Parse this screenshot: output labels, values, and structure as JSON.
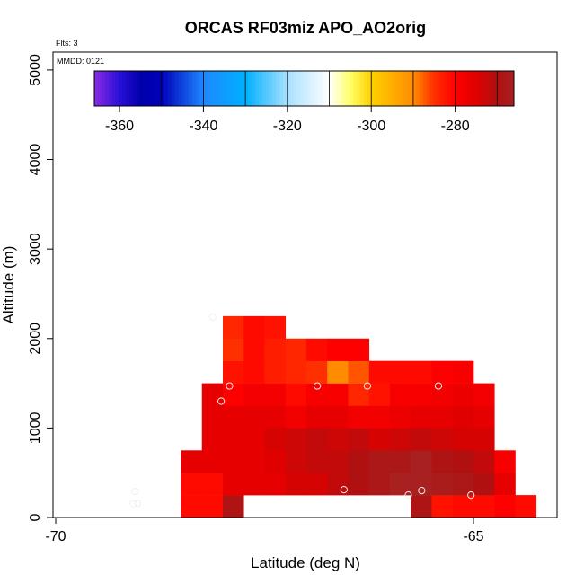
{
  "chart_data": {
    "type": "heatmap",
    "title": "ORCAS RF03miz APO_AO2orig",
    "annotations": {
      "flights": "Flts: 3",
      "date": "MMDD: 0121"
    },
    "xlabel": "Latitude (deg N)",
    "ylabel": "Altitude (m)",
    "xlim": [
      -70,
      -64
    ],
    "ylim": [
      0,
      5200
    ],
    "x_ticks": [
      {
        "value": -70,
        "label": "-70"
      },
      {
        "value": -65,
        "label": "-65"
      }
    ],
    "y_ticks": [
      {
        "value": 0,
        "label": "0"
      },
      {
        "value": 1000,
        "label": "1000"
      },
      {
        "value": 2000,
        "label": "2000"
      },
      {
        "value": 3000,
        "label": "3000"
      },
      {
        "value": 4000,
        "label": "4000"
      },
      {
        "value": 5000,
        "label": "5000"
      }
    ],
    "grid": false,
    "colorbar": {
      "placement": "top",
      "range": [
        -366,
        -266
      ],
      "tick_values": [
        -360,
        -340,
        -320,
        -300,
        -280
      ],
      "tick_labels": [
        "-360",
        "-340",
        "-320",
        "-300",
        "-280"
      ],
      "stops": [
        {
          "value": -366,
          "color": "#8a2be2"
        },
        {
          "value": -360,
          "color": "#2a10d8"
        },
        {
          "value": -355,
          "color": "#0000aa"
        },
        {
          "value": -350,
          "color": "#0000bb"
        },
        {
          "value": -340,
          "color": "#1e88ff"
        },
        {
          "value": -330,
          "color": "#00b0ff"
        },
        {
          "value": -320,
          "color": "#a8e0ff"
        },
        {
          "value": -310,
          "color": "#ffffff"
        },
        {
          "value": -305,
          "color": "#ffff66"
        },
        {
          "value": -300,
          "color": "#ffd000"
        },
        {
          "value": -290,
          "color": "#ff8c00"
        },
        {
          "value": -285,
          "color": "#ff3000"
        },
        {
          "value": -280,
          "color": "#ff0000"
        },
        {
          "value": -275,
          "color": "#e00000"
        },
        {
          "value": -270,
          "color": "#b01010"
        },
        {
          "value": -266,
          "color": "#a82020"
        }
      ]
    },
    "cells": {
      "lat_step": 0.25,
      "alt_step": 250,
      "columns": [
        {
          "lat": -68.5,
          "values": [
            -281,
            -281,
            -276
          ]
        },
        {
          "lat": -68.25,
          "values": [
            -281,
            -281,
            -276,
            -276,
            -276,
            -276
          ]
        },
        {
          "lat": -68.0,
          "values": [
            -269,
            -276,
            -276,
            -276,
            -276,
            -280,
            -282,
            -285,
            -284
          ]
        },
        {
          "lat": -67.75,
          "values": [
            null,
            -276,
            -276,
            -276,
            -276,
            -278,
            -281,
            -281,
            -281
          ]
        },
        {
          "lat": -67.5,
          "values": [
            null,
            -276,
            -275,
            -274,
            -276,
            -278,
            -283,
            -283,
            -282
          ]
        },
        {
          "lat": -67.25,
          "values": [
            null,
            -274,
            -273,
            -273,
            -278,
            -281,
            -284,
            -284
          ]
        },
        {
          "lat": -67.0,
          "values": [
            null,
            -274,
            -272,
            -272,
            -276,
            -279,
            -285,
            -281
          ]
        },
        {
          "lat": -66.75,
          "values": [
            null,
            -272,
            -272,
            -273,
            -276,
            -279,
            -290,
            -280
          ]
        },
        {
          "lat": -66.5,
          "values": [
            null,
            -270,
            -270,
            -272,
            -278,
            -284,
            -287,
            -280
          ]
        },
        {
          "lat": -66.25,
          "values": [
            null,
            -268,
            -268,
            -274,
            -278,
            -282,
            -281
          ]
        },
        {
          "lat": -66.0,
          "values": [
            null,
            -266,
            -268,
            -273,
            -277,
            -279,
            -281
          ]
        },
        {
          "lat": -65.75,
          "values": [
            -269,
            -266,
            -266,
            -272,
            -276,
            -279,
            -281
          ]
        },
        {
          "lat": -65.5,
          "values": [
            -282,
            -267,
            -269,
            -273,
            -276,
            -278,
            -280
          ]
        },
        {
          "lat": -65.25,
          "values": [
            -281,
            -268,
            -270,
            -274,
            -275,
            -277,
            -279
          ]
        },
        {
          "lat": -65.0,
          "values": [
            -281,
            -270,
            -272,
            -274,
            -276,
            -278
          ]
        },
        {
          "lat": -64.75,
          "values": [
            -280,
            -276,
            -279
          ]
        },
        {
          "lat": -64.5,
          "values": [
            -281
          ]
        }
      ]
    },
    "samples": [
      {
        "lat": -69.05,
        "alt": 290
      },
      {
        "lat": -69.07,
        "alt": 155
      },
      {
        "lat": -69.02,
        "alt": 160
      },
      {
        "lat": -68.12,
        "alt": 2240
      },
      {
        "lat": -67.92,
        "alt": 1470
      },
      {
        "lat": -68.02,
        "alt": 1300
      },
      {
        "lat": -66.87,
        "alt": 1470
      },
      {
        "lat": -66.27,
        "alt": 1470
      },
      {
        "lat": -65.42,
        "alt": 1470
      },
      {
        "lat": -66.55,
        "alt": 310
      },
      {
        "lat": -65.62,
        "alt": 300
      },
      {
        "lat": -65.78,
        "alt": 250
      },
      {
        "lat": -65.03,
        "alt": 250
      }
    ]
  }
}
